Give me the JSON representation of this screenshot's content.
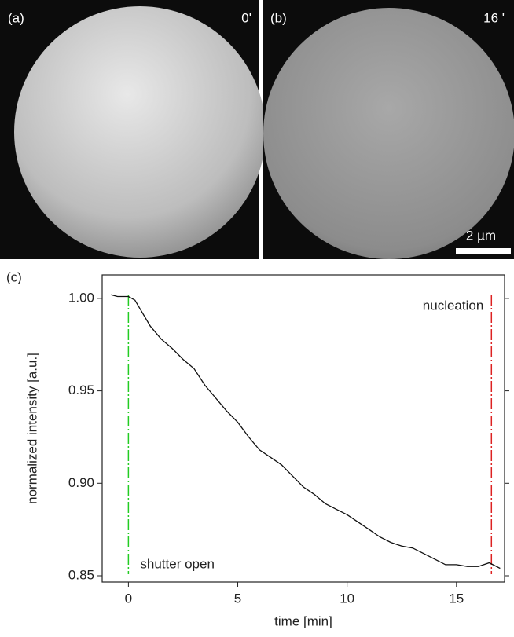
{
  "panels": [
    {
      "label": "(a)",
      "time": "0'"
    },
    {
      "label": "(b)",
      "time": "16 '"
    }
  ],
  "scale_bar": "2 µm",
  "chart_label": "(c)",
  "chart_data": {
    "type": "line",
    "xlabel": "time [min]",
    "ylabel": "normalized intensity [a.u.]",
    "x": [
      -0.8,
      -0.5,
      0,
      0.3,
      0.5,
      1,
      1.5,
      2,
      2.5,
      3,
      3.5,
      4,
      4.5,
      5,
      5.5,
      6,
      6.5,
      7,
      7.5,
      8,
      8.5,
      9,
      9.5,
      10,
      10.5,
      11,
      11.5,
      12,
      12.5,
      13,
      13.5,
      14,
      14.5,
      15,
      15.5,
      16,
      16.5,
      17
    ],
    "values": [
      1.002,
      1.001,
      1.001,
      0.999,
      0.995,
      0.985,
      0.978,
      0.973,
      0.967,
      0.962,
      0.953,
      0.946,
      0.939,
      0.933,
      0.925,
      0.918,
      0.914,
      0.91,
      0.904,
      0.898,
      0.894,
      0.889,
      0.886,
      0.883,
      0.879,
      0.875,
      0.871,
      0.868,
      0.866,
      0.865,
      0.862,
      0.859,
      0.856,
      0.856,
      0.855,
      0.855,
      0.857,
      0.854
    ],
    "color": "#111111",
    "xlim": [
      -1.2,
      17.2
    ],
    "ylim": [
      0.8466,
      1.0127
    ],
    "xticks": [
      0,
      5,
      10,
      15
    ],
    "yticks": [
      0.85,
      {
        "value": 0.9,
        "label": "0.90"
      },
      0.95,
      {
        "value": 1,
        "label": "1.00"
      }
    ],
    "markers": [
      {
        "x": 0,
        "label": "shutter open",
        "color": "#22cc22"
      },
      {
        "x": 16.6,
        "label": "nucleation",
        "color": "#dd2222"
      }
    ]
  }
}
